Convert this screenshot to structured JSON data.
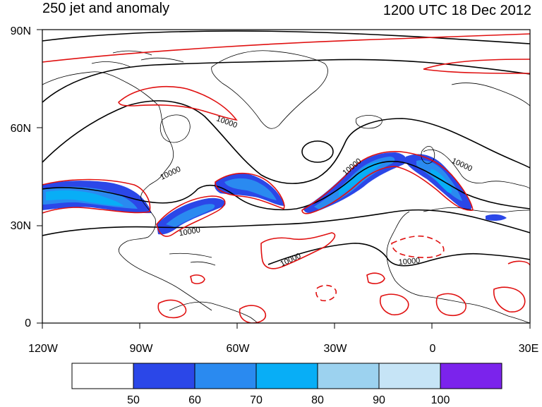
{
  "header": {
    "title": "250 jet and anomaly",
    "datetime": "1200 UTC 18 Dec 2012"
  },
  "map": {
    "lat_labels": [
      "90N",
      "60N",
      "30N",
      "0"
    ],
    "lon_labels": [
      "120W",
      "90W",
      "60W",
      "30W",
      "0",
      "30E"
    ],
    "contour_label": "10000"
  },
  "colorbar": {
    "labels": [
      "50",
      "60",
      "70",
      "80",
      "90",
      "100"
    ],
    "colors": [
      "#ffffff",
      "#2b47e8",
      "#2a8af0",
      "#08aef6",
      "#9cd2ef",
      "#c6e4f6",
      "#7b23ec"
    ]
  },
  "colors": {
    "coast": "#000000",
    "anomaly": "#e01010",
    "height": "#000000"
  }
}
